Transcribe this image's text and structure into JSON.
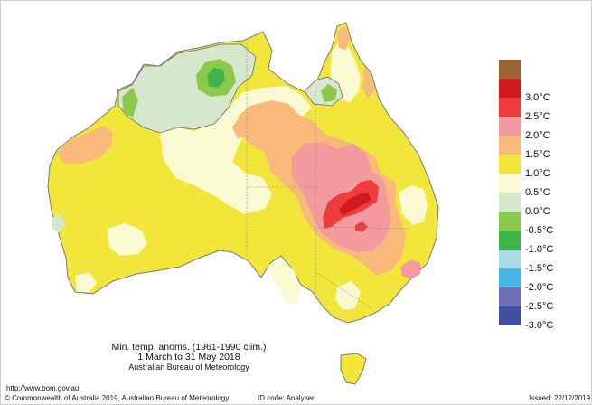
{
  "map": {
    "caption_line1": "Min. temp. anoms. (1961-1990 clim.)",
    "caption_line2": "1 March to 31 May 2018",
    "caption_line3": "Australian Bureau of Meteorology",
    "url": "http://www.bom.gov.au",
    "copyright": "© Commonwealth of Australia 2019, Australian Bureau of Meteorology",
    "id_code": "ID code: Analyser",
    "issued": "Issued: 22/12/2019"
  },
  "legend": [
    {
      "label": "",
      "color": "#9b6531"
    },
    {
      "label": "3.0°C",
      "color": "#d2191f"
    },
    {
      "label": "2.5°C",
      "color": "#ee3b3b"
    },
    {
      "label": "2.0°C",
      "color": "#f39a9e"
    },
    {
      "label": "1.5°C",
      "color": "#f8b97a"
    },
    {
      "label": "1.0°C",
      "color": "#f2e63a"
    },
    {
      "label": "0.5°C",
      "color": "#fafad2"
    },
    {
      "label": "0.0°C",
      "color": "#d5e8cc"
    },
    {
      "label": "-0.5°C",
      "color": "#8cc84b"
    },
    {
      "label": "-1.0°C",
      "color": "#3db54a"
    },
    {
      "label": "-1.5°C",
      "color": "#a9dde3"
    },
    {
      "label": "-2.0°C",
      "color": "#45b5e8"
    },
    {
      "label": "-2.5°C",
      "color": "#6f6fb3"
    },
    {
      "label": "-3.0°C",
      "color": "#3d4fa2"
    }
  ]
}
